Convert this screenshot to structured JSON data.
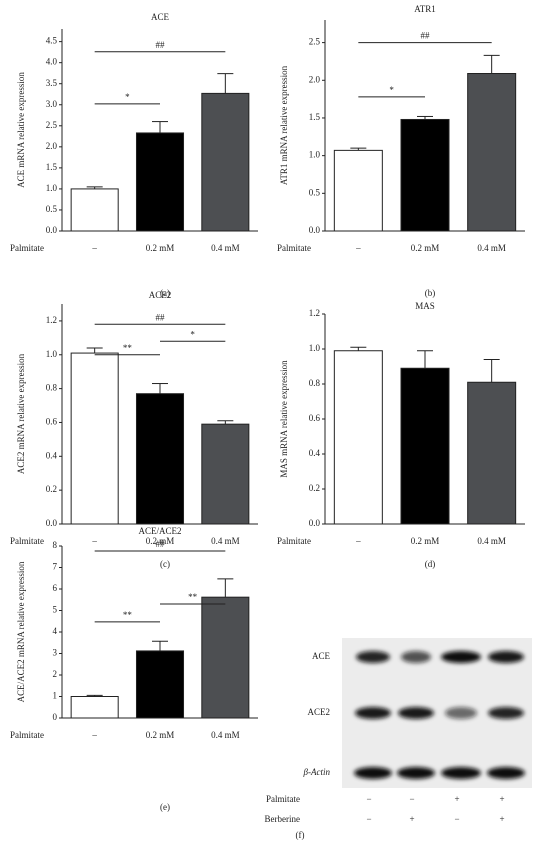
{
  "chart_data": [
    {
      "type": "bar",
      "title": "ACE",
      "y_label": "ACE mRNA relative expression",
      "x_label": "Palmitate",
      "panel_label": "(a)",
      "categories": [
        "–",
        "0.2 mM",
        "0.4 mM"
      ],
      "values": [
        1.0,
        2.33,
        3.27
      ],
      "errors": [
        0.05,
        0.27,
        0.47
      ],
      "colors": [
        "#ffffff",
        "#000000",
        "#4d4f52"
      ],
      "ylim": [
        0,
        4.8
      ],
      "yticks": [
        {
          "value": 0,
          "label": "0.0"
        },
        0.5,
        {
          "value": 1,
          "label": "1.0"
        },
        1.5,
        {
          "value": 2,
          "label": "2.0"
        },
        2.5,
        {
          "value": 3,
          "label": "3.0"
        },
        3.5,
        {
          "value": 4,
          "label": "4.0"
        },
        4.5
      ],
      "annotations": [
        {
          "text": "*",
          "y": 3.02,
          "between": [
            "–",
            "0.2 mM"
          ]
        },
        {
          "text": "##",
          "y": 4.26,
          "between": [
            "–",
            "0.4 mM"
          ]
        }
      ]
    },
    {
      "type": "bar",
      "title": "ATR1",
      "y_label": "ATR1 mRNA relative expression",
      "x_label": "Palmitate",
      "panel_label": "(b)",
      "categories": [
        "–",
        "0.2 mM",
        "0.4 mM"
      ],
      "values": [
        1.07,
        1.48,
        2.09
      ],
      "errors": [
        0.03,
        0.04,
        0.24
      ],
      "colors": [
        "#ffffff",
        "#000000",
        "#4d4f52"
      ],
      "ylim": [
        0,
        2.8
      ],
      "yticks": [
        {
          "value": 0,
          "label": "0.0"
        },
        0.5,
        {
          "value": 1,
          "label": "1.0"
        },
        1.5,
        {
          "value": 2,
          "label": "2.0"
        },
        2.5
      ],
      "annotations": [
        {
          "text": "*",
          "y": 1.78,
          "between": [
            "–",
            "0.2 mM"
          ]
        },
        {
          "text": "##",
          "y": 2.5,
          "between": [
            "–",
            "0.4 mM"
          ]
        }
      ]
    },
    {
      "type": "bar",
      "title": "ACE2",
      "y_label": "ACE2 mRNA relative expression",
      "x_label": "Palmitate",
      "panel_label": "(c)",
      "categories": [
        "–",
        "0.2 mM",
        "0.4 mM"
      ],
      "values": [
        1.01,
        0.77,
        0.59
      ],
      "errors": [
        0.03,
        0.06,
        0.02
      ],
      "colors": [
        "#ffffff",
        "#000000",
        "#4d4f52"
      ],
      "ylim": [
        0,
        1.3
      ],
      "yticks": [
        {
          "value": 0,
          "label": "0.0"
        },
        0.2,
        0.4,
        0.6,
        0.8,
        {
          "value": 1,
          "label": "1.0"
        },
        1.2
      ],
      "annotations": [
        {
          "text": "##",
          "y": 1.18,
          "between": [
            "–",
            "0.4 mM"
          ]
        },
        {
          "text": "**",
          "y": 1.0,
          "between": [
            "–",
            "0.2 mM"
          ]
        },
        {
          "text": "*",
          "y": 1.08,
          "between": [
            "0.2 mM",
            "0.4 mM"
          ]
        }
      ]
    },
    {
      "type": "bar",
      "title": "MAS",
      "y_label": "MAS mRNA relative expression",
      "x_label": "Palmitate",
      "panel_label": "(d)",
      "categories": [
        "–",
        "0.2 mM",
        "0.4 mM"
      ],
      "values": [
        0.99,
        0.89,
        0.81
      ],
      "errors": [
        0.02,
        0.1,
        0.13
      ],
      "colors": [
        "#ffffff",
        "#000000",
        "#4d4f52"
      ],
      "ylim": [
        0,
        1.2
      ],
      "yticks": [
        {
          "value": 0,
          "label": "0.0"
        },
        0.2,
        0.4,
        0.6,
        0.8,
        {
          "value": 1,
          "label": "1.0"
        },
        1.2
      ],
      "annotations": []
    },
    {
      "type": "bar",
      "title": "ACE/ACE2",
      "y_label": "ACE/ACE2 mRNA relative expression",
      "x_label": "Palmitate",
      "panel_label": "(e)",
      "categories": [
        "–",
        "0.2 mM",
        "0.4 mM"
      ],
      "values": [
        1.0,
        3.12,
        5.62
      ],
      "errors": [
        0.05,
        0.45,
        0.85
      ],
      "colors": [
        "#ffffff",
        "#000000",
        "#4d4f52"
      ],
      "ylim": [
        0,
        8
      ],
      "yticks": [
        0,
        1,
        2,
        3,
        4,
        5,
        6,
        7,
        8
      ],
      "annotations": [
        {
          "text": "##",
          "y": 7.77,
          "between": [
            "–",
            "0.4 mM"
          ]
        },
        {
          "text": "**",
          "y": 4.47,
          "between": [
            "–",
            "0.2 mM"
          ]
        },
        {
          "text": "**",
          "y": 5.3,
          "between": [
            "0.2 mM",
            "0.4 mM"
          ]
        }
      ]
    }
  ],
  "blot": {
    "panel_label": "(f)",
    "bands": [
      "ACE",
      "ACE2",
      "β-Actin"
    ],
    "treatments": [
      {
        "name": "Palmitate",
        "signs": [
          "−",
          "−",
          "+",
          "+"
        ]
      },
      {
        "name": "Berberine",
        "signs": [
          "−",
          "+",
          "−",
          "+"
        ]
      }
    ]
  }
}
